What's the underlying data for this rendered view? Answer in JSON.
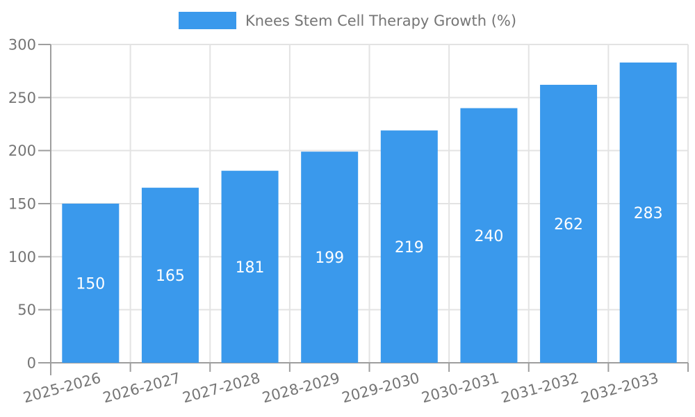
{
  "legend": {
    "label": "Knees Stem Cell Therapy Growth (%)"
  },
  "colors": {
    "bar": "#3a99ec",
    "value_label": "#ffffff",
    "axis_text": "#757575",
    "axis_line": "#9e9e9e",
    "gridline": "#e3e3e3",
    "background": "#ffffff"
  },
  "chart_data": {
    "type": "bar",
    "title": "Knees Stem Cell Therapy Growth (%)",
    "categories": [
      "2025-2026",
      "2026-2027",
      "2027-2028",
      "2028-2029",
      "2029-2030",
      "2030-2031",
      "2031-2032",
      "2032-2033"
    ],
    "values": [
      150,
      165,
      181,
      199,
      219,
      240,
      262,
      283
    ],
    "xlabel": "",
    "ylabel": "",
    "ylim": [
      0,
      300
    ],
    "yticks": [
      0,
      50,
      100,
      150,
      200,
      250,
      300
    ],
    "grid": true,
    "legend_position": "top",
    "value_labels": "inside-center",
    "x_label_rotation_deg": -15
  }
}
